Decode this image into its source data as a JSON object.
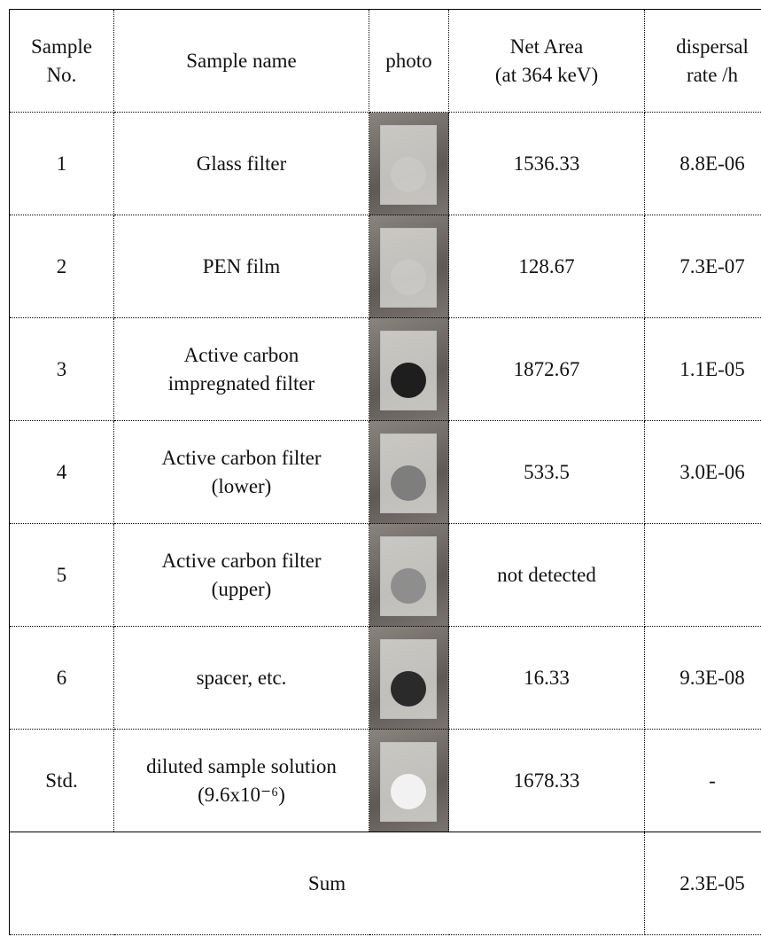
{
  "table": {
    "header": [
      "Sample\nNo.",
      "Sample name",
      "photo",
      "Net Area\n(at 364 keV)",
      "dispersal\nrate /h"
    ],
    "rows": [
      [
        "1",
        "Glass filter",
        1536.33,
        "8.8E-06"
      ],
      [
        "2",
        "PEN film",
        128.67,
        "7.3E-07"
      ],
      [
        "3",
        "Active carbon\nimpregnated filter",
        1872.67,
        "1.1E-05"
      ],
      [
        "4",
        "Active carbon filter\n(lower)",
        533.5,
        "3.0E-06"
      ],
      [
        "5",
        "Active carbon filter\n(upper)",
        "not detected",
        null
      ],
      [
        "6",
        "spacer, etc.",
        16.33,
        "9.3E-08"
      ],
      [
        "Std.",
        "diluted sample solution\n(9.6x10⁻⁶)",
        1678.33,
        "-"
      ]
    ],
    "sum": {
      "label": "Sum",
      "value": "2.3E-05"
    }
  }
}
